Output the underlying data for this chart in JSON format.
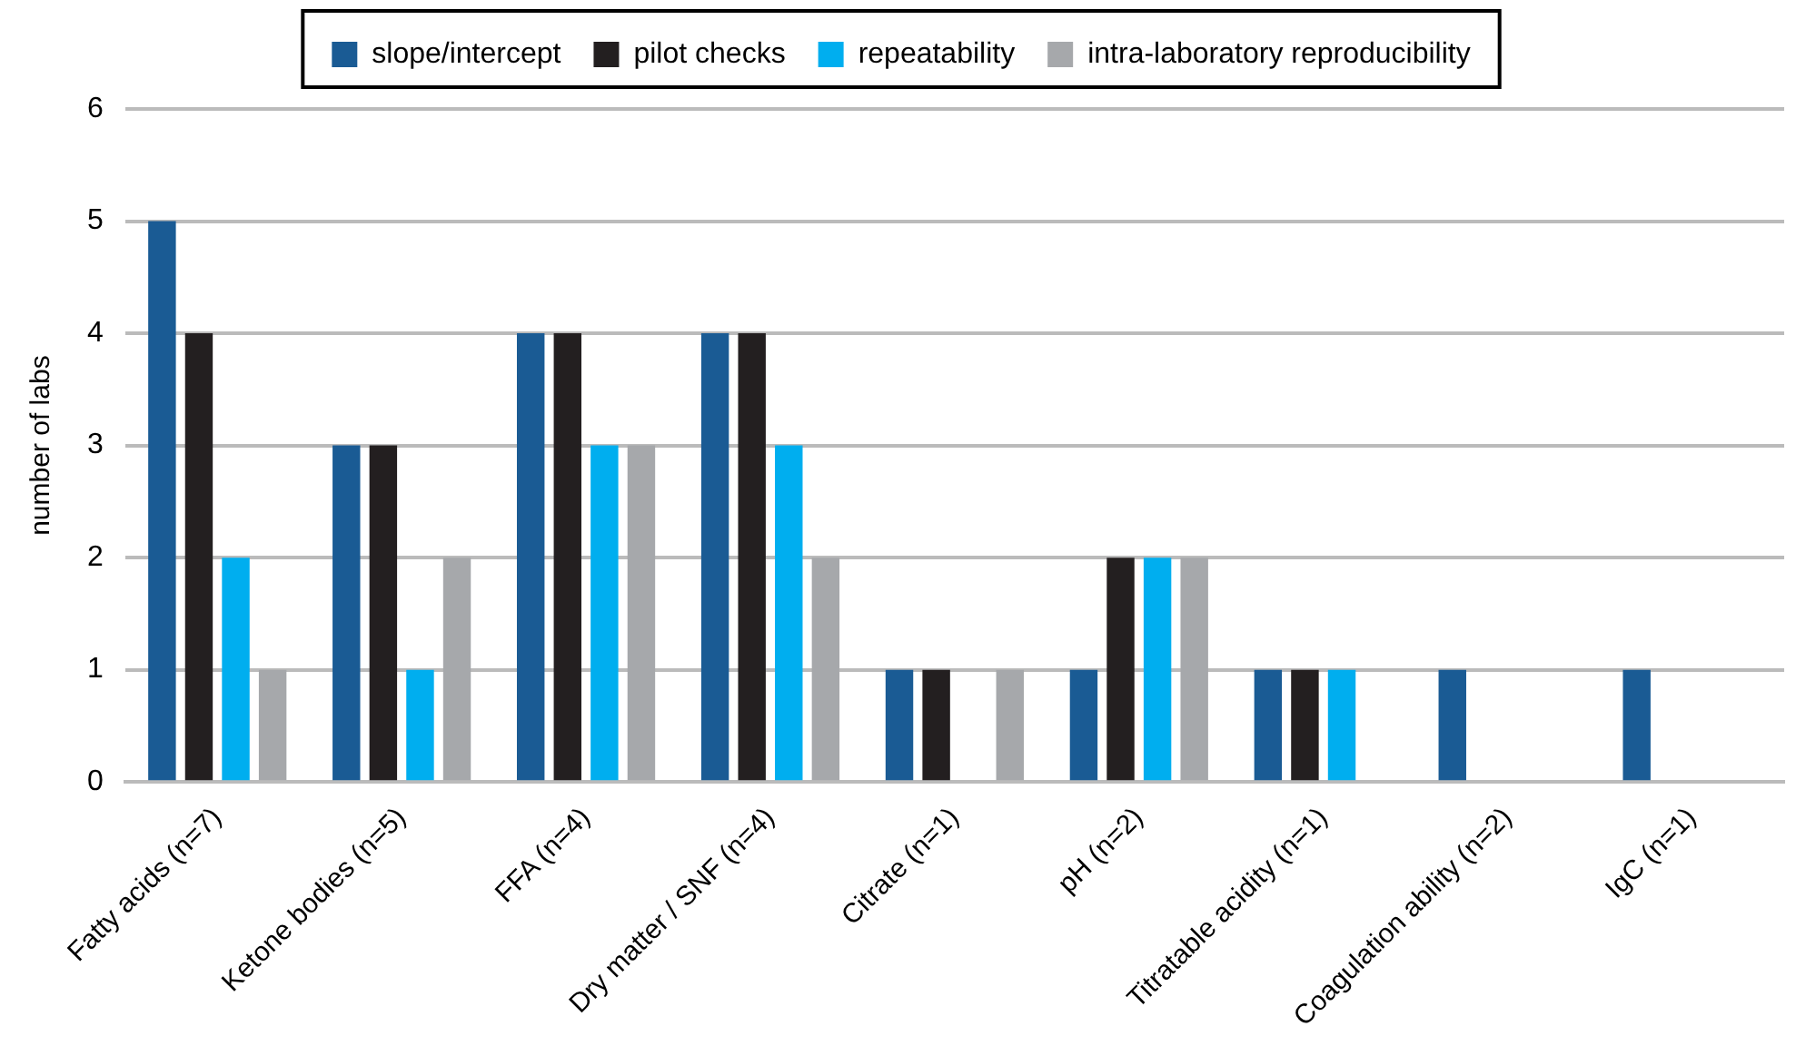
{
  "chart_data": {
    "type": "bar",
    "ylabel": "number of labs",
    "categories": [
      "Fatty acids (n=7)",
      "Ketone bodies (n=5)",
      "FFA (n=4)",
      "Dry matter / SNF (n=4)",
      "Citrate (n=1)",
      "pH (n=2)",
      "Titratable acidity (n=1)",
      "Coagulation ability (n=2)",
      "IgC (n=1)"
    ],
    "series": [
      {
        "name": "slope/intercept",
        "color": "#1a5b94",
        "values": [
          5,
          3,
          4,
          4,
          1,
          1,
          1,
          1,
          1
        ]
      },
      {
        "name": "pilot checks",
        "color": "#231f20",
        "values": [
          4,
          3,
          4,
          4,
          1,
          2,
          1,
          0,
          0
        ]
      },
      {
        "name": "repeatability",
        "color": "#00aeef",
        "values": [
          2,
          1,
          3,
          3,
          0,
          2,
          1,
          0,
          0
        ]
      },
      {
        "name": "intra-laboratory reproducibility",
        "color": "#a6a8ab",
        "values": [
          1,
          2,
          3,
          2,
          1,
          2,
          0,
          0,
          0
        ]
      }
    ],
    "ylim": [
      0,
      6
    ],
    "yticks": [
      0,
      1,
      2,
      3,
      4,
      5,
      6
    ],
    "grid": "y",
    "legend": "top"
  }
}
